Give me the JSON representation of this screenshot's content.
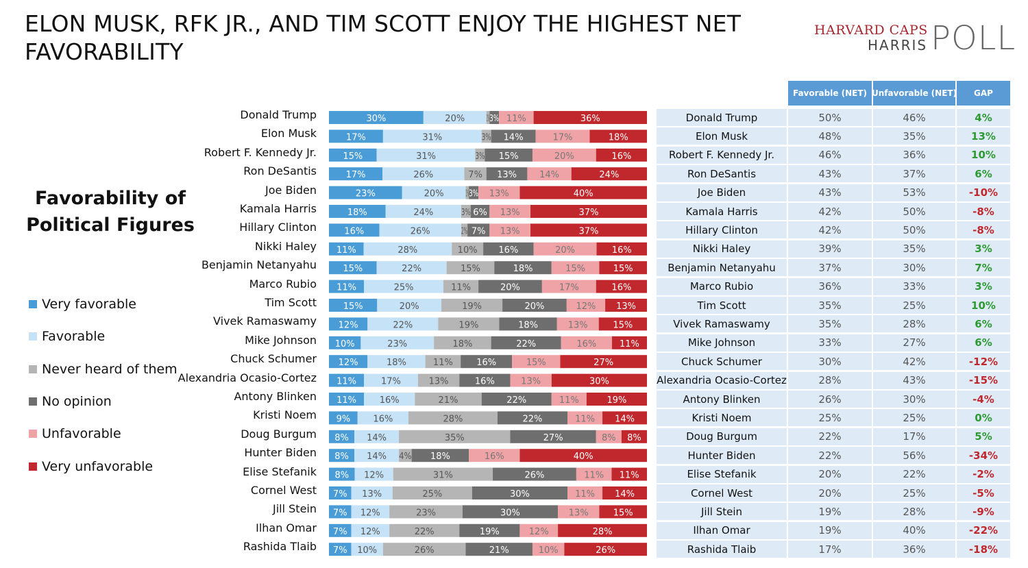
{
  "title": "ELON MUSK, RFK JR., AND TIM SCOTT ENJOY THE HIGHEST NET FAVORABILITY",
  "logo": {
    "line1": "HARVARD CAPS",
    "line2": "HARRIS",
    "line3": "POLL"
  },
  "subtitle": "Favorability of Political Figures",
  "legend": [
    {
      "label": "Very favorable",
      "color": "#4a9cd6"
    },
    {
      "label": "Favorable",
      "color": "#c5e2f6"
    },
    {
      "label": "Never heard of them",
      "color": "#b5b5b5"
    },
    {
      "label": "No opinion",
      "color": "#6e6e6e"
    },
    {
      "label": "Unfavorable",
      "color": "#f0a3a6"
    },
    {
      "label": "Very unfavorable",
      "color": "#c0282d"
    }
  ],
  "colors": {
    "gap_positive": "#2e9a33",
    "gap_negative": "#c0282d",
    "header_bg": "#5b9bd5",
    "cell_bg": "#deebf7"
  },
  "table_headers": [
    "Favorable (NET)",
    "Unfavorable (NET)",
    "GAP"
  ],
  "chart_data": {
    "type": "bar",
    "orientation": "horizontal",
    "stacked": true,
    "normalized": true,
    "legend_position": "left",
    "categories": [
      "Donald Trump",
      "Elon Musk",
      "Robert F. Kennedy Jr.",
      "Ron DeSantis",
      "Joe Biden",
      "Kamala Harris",
      "Hillary Clinton",
      "Nikki Haley",
      "Benjamin Netanyahu",
      "Marco Rubio",
      "Tim Scott",
      "Vivek Ramaswamy",
      "Mike Johnson",
      "Chuck Schumer",
      "Alexandria Ocasio-Cortez",
      "Antony Blinken",
      "Kristi Noem",
      "Doug Burgum",
      "Hunter Biden",
      "Elise Stefanik",
      "Cornel West",
      "Jill Stein",
      "Ilhan Omar",
      "Rashida Tlaib"
    ],
    "series": [
      {
        "name": "Very favorable",
        "values": [
          30,
          17,
          15,
          17,
          23,
          18,
          16,
          11,
          15,
          11,
          15,
          12,
          10,
          12,
          11,
          11,
          9,
          8,
          8,
          8,
          7,
          7,
          7,
          7
        ]
      },
      {
        "name": "Favorable",
        "values": [
          20,
          31,
          31,
          26,
          20,
          24,
          26,
          28,
          22,
          25,
          20,
          22,
          23,
          18,
          17,
          16,
          16,
          14,
          14,
          12,
          13,
          12,
          12,
          10
        ]
      },
      {
        "name": "Never heard of them",
        "values": [
          1,
          3,
          3,
          7,
          1,
          3,
          2,
          10,
          15,
          11,
          19,
          19,
          18,
          11,
          13,
          21,
          28,
          35,
          4,
          31,
          25,
          23,
          22,
          26
        ]
      },
      {
        "name": "No opinion",
        "values": [
          3,
          14,
          15,
          13,
          3,
          6,
          7,
          16,
          18,
          20,
          20,
          18,
          22,
          16,
          16,
          22,
          22,
          27,
          18,
          26,
          30,
          30,
          19,
          21
        ]
      },
      {
        "name": "Unfavorable",
        "values": [
          11,
          17,
          20,
          14,
          13,
          13,
          13,
          20,
          15,
          17,
          12,
          13,
          16,
          15,
          13,
          11,
          11,
          8,
          16,
          11,
          11,
          13,
          12,
          10
        ]
      },
      {
        "name": "Very unfavorable",
        "values": [
          36,
          18,
          16,
          24,
          40,
          37,
          37,
          16,
          15,
          16,
          13,
          15,
          11,
          27,
          30,
          19,
          14,
          8,
          40,
          11,
          14,
          15,
          28,
          26
        ]
      }
    ],
    "table": {
      "favorable_net": [
        "50%",
        "48%",
        "46%",
        "43%",
        "43%",
        "42%",
        "42%",
        "39%",
        "37%",
        "36%",
        "35%",
        "35%",
        "33%",
        "30%",
        "28%",
        "26%",
        "25%",
        "22%",
        "22%",
        "20%",
        "20%",
        "19%",
        "19%",
        "17%"
      ],
      "unfavorable_net": [
        "46%",
        "35%",
        "36%",
        "37%",
        "53%",
        "50%",
        "50%",
        "35%",
        "30%",
        "33%",
        "25%",
        "28%",
        "27%",
        "42%",
        "43%",
        "30%",
        "25%",
        "17%",
        "56%",
        "22%",
        "25%",
        "28%",
        "40%",
        "36%"
      ],
      "gap": [
        "4%",
        "13%",
        "10%",
        "6%",
        "-10%",
        "-8%",
        "-8%",
        "3%",
        "7%",
        "3%",
        "10%",
        "6%",
        "6%",
        "-12%",
        "-15%",
        "-4%",
        "0%",
        "5%",
        "-34%",
        "-2%",
        "-5%",
        "-9%",
        "-22%",
        "-18%"
      ]
    }
  }
}
